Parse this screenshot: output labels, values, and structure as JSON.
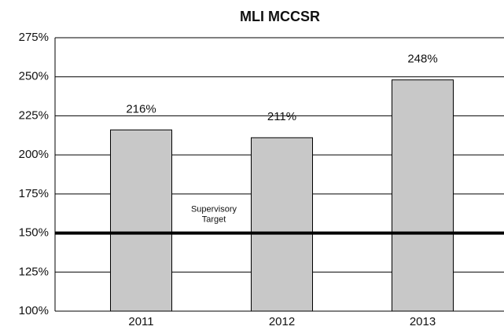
{
  "chart_data": {
    "type": "bar",
    "title": "MLI MCCSR",
    "categories": [
      "2011",
      "2012",
      "2013"
    ],
    "values": [
      216,
      211,
      248
    ],
    "value_labels": [
      "216%",
      "211%",
      "248%"
    ],
    "color": "#c8c8c8",
    "ylim": [
      100,
      275
    ],
    "yticks": [
      {
        "value": 100,
        "label": "100%"
      },
      {
        "value": 125,
        "label": "125%"
      },
      {
        "value": 150,
        "label": "150%"
      },
      {
        "value": 175,
        "label": "175%"
      },
      {
        "value": 200,
        "label": "200%"
      },
      {
        "value": 225,
        "label": "225%"
      },
      {
        "value": 250,
        "label": "250%"
      },
      {
        "value": 275,
        "label": "275%"
      }
    ],
    "grid": true,
    "target": {
      "value": 150,
      "label": [
        "Supervisory",
        "Target"
      ]
    }
  }
}
